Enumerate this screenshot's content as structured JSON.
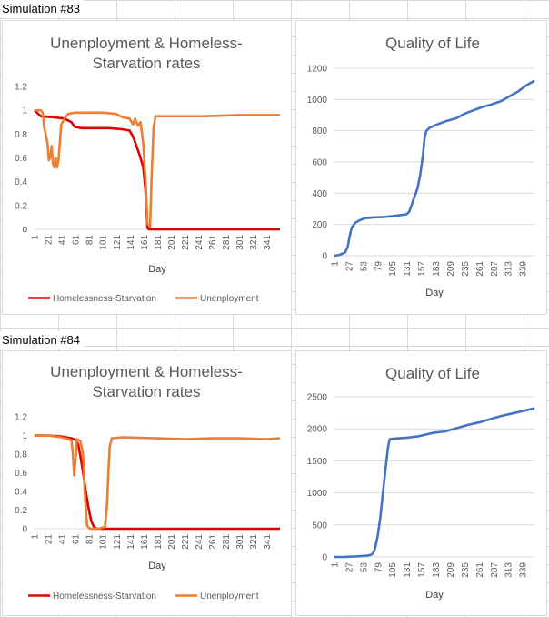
{
  "sections": [
    {
      "label": "Simulation #83",
      "charts": {
        "rates": {
          "type": "line",
          "title": [
            "Unenployment & Homeless-",
            "Starvation rates"
          ],
          "xlabel": "Day",
          "ylim": [
            0,
            1.2
          ],
          "yticks": [
            "0",
            "0.2",
            "0.4",
            "0.6",
            "0.8",
            "1",
            "1.2"
          ],
          "xticks": [
            "1",
            "21",
            "41",
            "61",
            "81",
            "101",
            "121",
            "141",
            "161",
            "181",
            "201",
            "221",
            "241",
            "261",
            "281",
            "301",
            "321",
            "341"
          ],
          "series": [
            {
              "name": "Homelessness-Starvation",
              "color": "#e00000",
              "points": [
                [
                  1,
                  1
                ],
                [
                  10,
                  0.95
                ],
                [
                  30,
                  0.94
                ],
                [
                  45,
                  0.93
                ],
                [
                  55,
                  0.9
                ],
                [
                  60,
                  0.86
                ],
                [
                  70,
                  0.85
                ],
                [
                  90,
                  0.85
                ],
                [
                  110,
                  0.85
                ],
                [
                  130,
                  0.84
                ],
                [
                  140,
                  0.83
                ],
                [
                  145,
                  0.78
                ],
                [
                  150,
                  0.7
                ],
                [
                  155,
                  0.62
                ],
                [
                  160,
                  0.52
                ],
                [
                  163,
                  0.35
                ],
                [
                  166,
                  0.02
                ],
                [
                  168,
                  0
                ],
                [
                  360,
                  0
                ]
              ]
            },
            {
              "name": "Unenployment",
              "color": "#ed7d31",
              "points": [
                [
                  1,
                  1
                ],
                [
                  10,
                  1
                ],
                [
                  13,
                  0.98
                ],
                [
                  15,
                  0.86
                ],
                [
                  18,
                  0.78
                ],
                [
                  20,
                  0.72
                ],
                [
                  22,
                  0.58
                ],
                [
                  24,
                  0.61
                ],
                [
                  26,
                  0.7
                ],
                [
                  28,
                  0.55
                ],
                [
                  30,
                  0.52
                ],
                [
                  32,
                  0.6
                ],
                [
                  34,
                  0.52
                ],
                [
                  36,
                  0.58
                ],
                [
                  38,
                  0.72
                ],
                [
                  40,
                  0.88
                ],
                [
                  45,
                  0.93
                ],
                [
                  50,
                  0.97
                ],
                [
                  60,
                  0.98
                ],
                [
                  80,
                  0.98
                ],
                [
                  100,
                  0.98
                ],
                [
                  120,
                  0.97
                ],
                [
                  130,
                  0.94
                ],
                [
                  140,
                  0.93
                ],
                [
                  145,
                  0.88
                ],
                [
                  148,
                  0.93
                ],
                [
                  152,
                  0.87
                ],
                [
                  156,
                  0.9
                ],
                [
                  160,
                  0.72
                ],
                [
                  164,
                  0.35
                ],
                [
                  166,
                  0.05
                ],
                [
                  170,
                  0.02
                ],
                [
                  172,
                  0.4
                ],
                [
                  175,
                  0.85
                ],
                [
                  178,
                  0.95
                ],
                [
                  200,
                  0.95
                ],
                [
                  250,
                  0.95
                ],
                [
                  300,
                  0.96
                ],
                [
                  360,
                  0.96
                ]
              ]
            }
          ]
        },
        "qol": {
          "type": "line",
          "title": "Quality of Life",
          "xlabel": "Day",
          "ylim": [
            0,
            1200
          ],
          "yticks": [
            "0",
            "200",
            "400",
            "600",
            "800",
            "1000",
            "1200"
          ],
          "xticks": [
            "1",
            "27",
            "53",
            "79",
            "105",
            "131",
            "157",
            "183",
            "209",
            "235",
            "261",
            "287",
            "313",
            "339"
          ],
          "series": [
            {
              "name": "",
              "color": "#4472c4",
              "points": [
                [
                  1,
                  0
                ],
                [
                  10,
                  5
                ],
                [
                  20,
                  20
                ],
                [
                  25,
                  60
                ],
                [
                  28,
                  120
                ],
                [
                  32,
                  180
                ],
                [
                  38,
                  210
                ],
                [
                  45,
                  225
                ],
                [
                  55,
                  240
                ],
                [
                  70,
                  245
                ],
                [
                  90,
                  248
                ],
                [
                  110,
                  255
                ],
                [
                  130,
                  265
                ],
                [
                  135,
                  280
                ],
                [
                  140,
                  330
                ],
                [
                  145,
                  380
                ],
                [
                  150,
                  430
                ],
                [
                  155,
                  520
                ],
                [
                  160,
                  650
                ],
                [
                  163,
                  760
                ],
                [
                  166,
                  800
                ],
                [
                  172,
                  820
                ],
                [
                  185,
                  840
                ],
                [
                  200,
                  860
                ],
                [
                  220,
                  880
                ],
                [
                  235,
                  910
                ],
                [
                  250,
                  930
                ],
                [
                  265,
                  950
                ],
                [
                  280,
                  965
                ],
                [
                  300,
                  990
                ],
                [
                  315,
                  1020
                ],
                [
                  330,
                  1050
                ],
                [
                  345,
                  1090
                ],
                [
                  360,
                  1120
                ]
              ]
            }
          ]
        }
      }
    },
    {
      "label": "Simulation #84",
      "charts": {
        "rates": {
          "type": "line",
          "title": [
            "Unenployment & Homeless-",
            "Starvation rates"
          ],
          "xlabel": "Day",
          "ylim": [
            0,
            1.2
          ],
          "yticks": [
            "0",
            "0.2",
            "0.4",
            "0.6",
            "0.8",
            "1",
            "1.2"
          ],
          "xticks": [
            "1",
            "21",
            "41",
            "61",
            "81",
            "101",
            "121",
            "141",
            "161",
            "181",
            "201",
            "221",
            "241",
            "261",
            "281",
            "301",
            "321",
            "341"
          ],
          "series": [
            {
              "name": "Homelessness-Starvation",
              "color": "#e00000",
              "points": [
                [
                  1,
                  1
                ],
                [
                  20,
                  1
                ],
                [
                  40,
                  0.99
                ],
                [
                  55,
                  0.97
                ],
                [
                  62,
                  0.95
                ],
                [
                  65,
                  0.9
                ],
                [
                  68,
                  0.78
                ],
                [
                  72,
                  0.6
                ],
                [
                  76,
                  0.4
                ],
                [
                  80,
                  0.22
                ],
                [
                  84,
                  0.08
                ],
                [
                  88,
                  0.02
                ],
                [
                  92,
                  0
                ],
                [
                  360,
                  0
                ]
              ]
            },
            {
              "name": "Unenployment",
              "color": "#ed7d31",
              "points": [
                [
                  1,
                  1
                ],
                [
                  20,
                  1
                ],
                [
                  40,
                  0.98
                ],
                [
                  50,
                  0.96
                ],
                [
                  55,
                  0.95
                ],
                [
                  57,
                  0.8
                ],
                [
                  59,
                  0.57
                ],
                [
                  61,
                  0.75
                ],
                [
                  63,
                  0.96
                ],
                [
                  68,
                  0.94
                ],
                [
                  72,
                  0.8
                ],
                [
                  75,
                  0.3
                ],
                [
                  78,
                  0.03
                ],
                [
                  82,
                  0
                ],
                [
                  95,
                  0
                ],
                [
                  104,
                  0.02
                ],
                [
                  107,
                  0.25
                ],
                [
                  109,
                  0.6
                ],
                [
                  111,
                  0.88
                ],
                [
                  114,
                  0.97
                ],
                [
                  130,
                  0.98
                ],
                [
                  180,
                  0.97
                ],
                [
                  220,
                  0.96
                ],
                [
                  260,
                  0.97
                ],
                [
                  300,
                  0.97
                ],
                [
                  340,
                  0.96
                ],
                [
                  360,
                  0.97
                ]
              ]
            }
          ]
        },
        "qol": {
          "type": "line",
          "title": "Quality of Life",
          "xlabel": "Day",
          "ylim": [
            0,
            2500
          ],
          "yticks": [
            "0",
            "500",
            "1000",
            "1500",
            "2000",
            "2500"
          ],
          "xticks": [
            "1",
            "27",
            "53",
            "79",
            "105",
            "131",
            "157",
            "183",
            "209",
            "235",
            "261",
            "287",
            "313",
            "339"
          ],
          "series": [
            {
              "name": "",
              "color": "#4472c4",
              "points": [
                [
                  1,
                  0
                ],
                [
                  20,
                  2
                ],
                [
                  40,
                  8
                ],
                [
                  60,
                  20
                ],
                [
                  68,
                  40
                ],
                [
                  73,
                  100
                ],
                [
                  78,
                  300
                ],
                [
                  83,
                  600
                ],
                [
                  88,
                  1000
                ],
                [
                  93,
                  1400
                ],
                [
                  97,
                  1700
                ],
                [
                  100,
                  1840
                ],
                [
                  110,
                  1850
                ],
                [
                  130,
                  1860
                ],
                [
                  150,
                  1880
                ],
                [
                  165,
                  1910
                ],
                [
                  180,
                  1940
                ],
                [
                  200,
                  1960
                ],
                [
                  220,
                  2010
                ],
                [
                  240,
                  2060
                ],
                [
                  260,
                  2100
                ],
                [
                  280,
                  2150
                ],
                [
                  300,
                  2200
                ],
                [
                  320,
                  2240
                ],
                [
                  340,
                  2280
                ],
                [
                  360,
                  2320
                ]
              ]
            }
          ]
        }
      }
    }
  ]
}
